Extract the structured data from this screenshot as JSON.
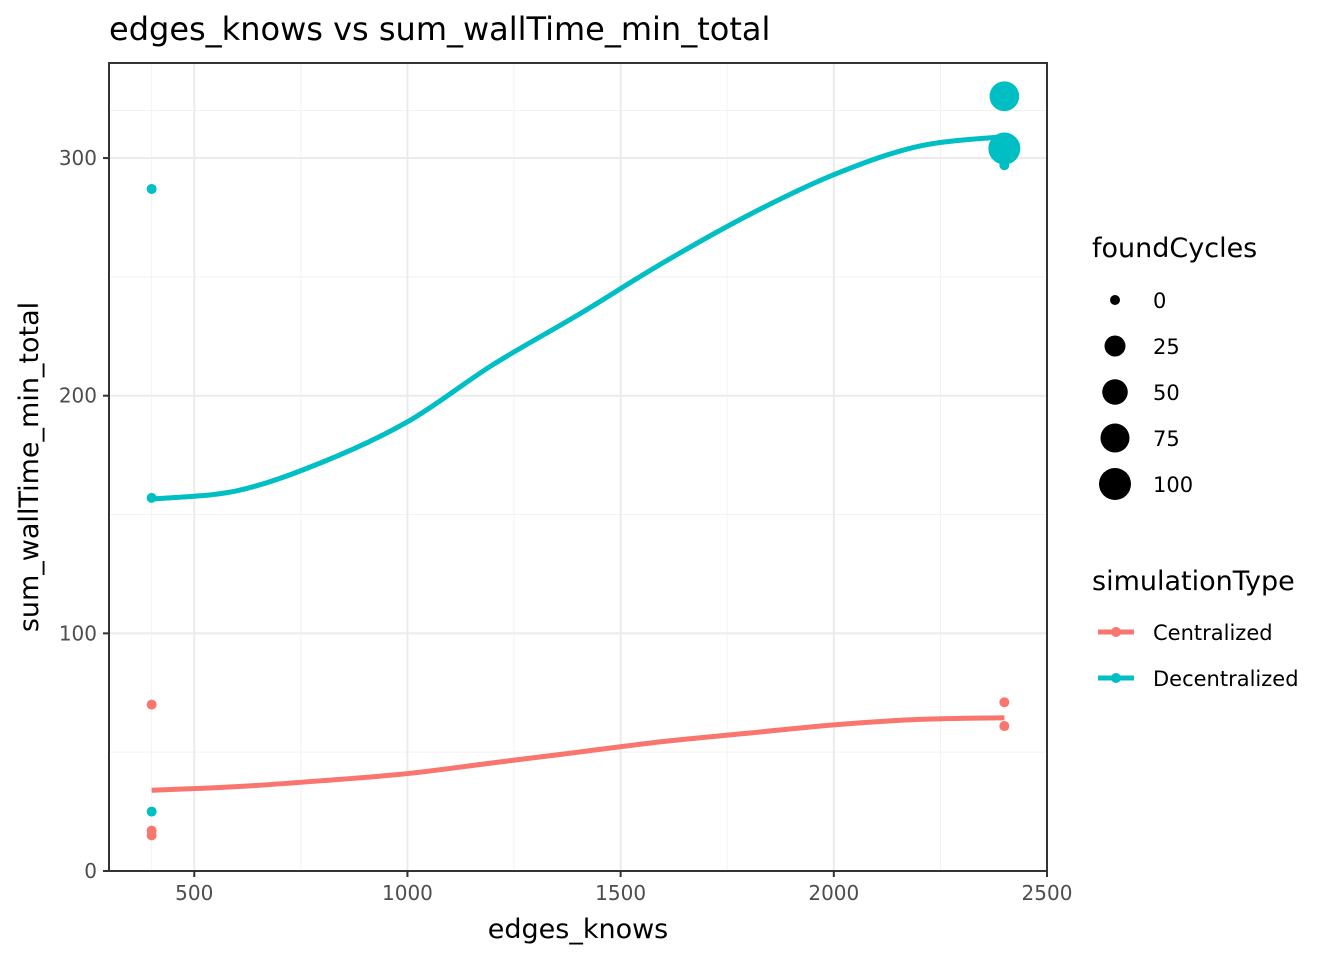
{
  "chart_data": {
    "type": "scatter",
    "title": "edges_knows  vs  sum_wallTime_min_total",
    "xlabel": "edges_knows",
    "ylabel": "sum_wallTime_min_total",
    "xlim": [
      300,
      2500
    ],
    "ylim": [
      0,
      340
    ],
    "x_ticks": [
      500,
      1000,
      1500,
      2000,
      2500
    ],
    "y_ticks": [
      0,
      100,
      200,
      300
    ],
    "x_tick_labels": [
      "500",
      "1000",
      "1500",
      "2000",
      "2500"
    ],
    "y_tick_labels": [
      "0",
      "100",
      "200",
      "300"
    ],
    "grid": true,
    "size_legend": {
      "title": "foundCycles",
      "entries": [
        {
          "label": "0",
          "value": 0
        },
        {
          "label": "25",
          "value": 25
        },
        {
          "label": "50",
          "value": 50
        },
        {
          "label": "75",
          "value": 75
        },
        {
          "label": "100",
          "value": 100
        }
      ]
    },
    "color_legend": {
      "title": "simulationType",
      "placement": "right"
    },
    "series": [
      {
        "name": "Centralized",
        "color": "#F8766D",
        "points": [
          {
            "x": 400,
            "y": 70,
            "foundCycles": 0
          },
          {
            "x": 400,
            "y": 17,
            "foundCycles": 0
          },
          {
            "x": 400,
            "y": 15,
            "foundCycles": 0
          },
          {
            "x": 2400,
            "y": 71,
            "foundCycles": 0
          },
          {
            "x": 2400,
            "y": 61,
            "foundCycles": 0
          }
        ],
        "smooth": [
          [
            400,
            34
          ],
          [
            600,
            35.5
          ],
          [
            800,
            38
          ],
          [
            1000,
            41
          ],
          [
            1200,
            45.5
          ],
          [
            1400,
            50
          ],
          [
            1600,
            54.5
          ],
          [
            1800,
            58
          ],
          [
            2000,
            61.5
          ],
          [
            2200,
            63.8
          ],
          [
            2400,
            64.5
          ]
        ]
      },
      {
        "name": "Decentralized",
        "color": "#00BFC4",
        "points": [
          {
            "x": 400,
            "y": 287,
            "foundCycles": 0
          },
          {
            "x": 400,
            "y": 157,
            "foundCycles": 0
          },
          {
            "x": 400,
            "y": 25,
            "foundCycles": 0
          },
          {
            "x": 2400,
            "y": 326,
            "foundCycles": 80
          },
          {
            "x": 2400,
            "y": 304,
            "foundCycles": 100
          },
          {
            "x": 2400,
            "y": 297,
            "foundCycles": 0
          }
        ],
        "smooth": [
          [
            400,
            156.5
          ],
          [
            600,
            160
          ],
          [
            800,
            172
          ],
          [
            1000,
            189
          ],
          [
            1200,
            213
          ],
          [
            1400,
            234
          ],
          [
            1600,
            256
          ],
          [
            1800,
            276
          ],
          [
            2000,
            293
          ],
          [
            2200,
            305
          ],
          [
            2400,
            309
          ]
        ]
      }
    ]
  }
}
